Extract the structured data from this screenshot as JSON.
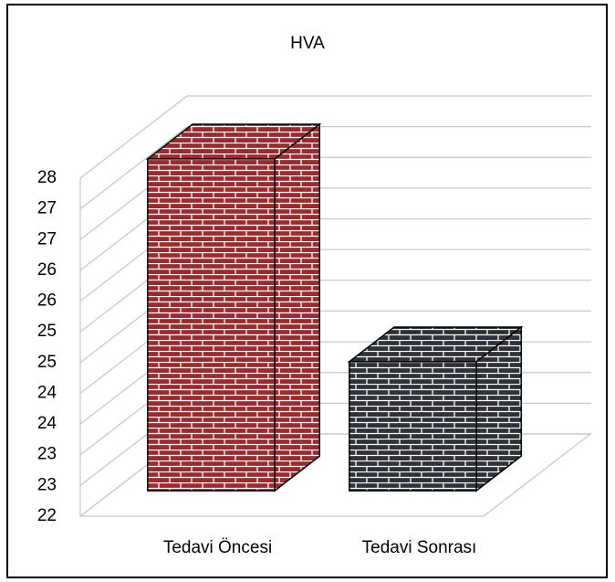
{
  "chart_data": {
    "type": "bar3d",
    "title": "HVA",
    "categories": [
      "Tedavi Öncesi",
      "Tedavi Sonrası"
    ],
    "series": [
      {
        "name": "HVA",
        "colors": [
          "#a8262a",
          "#2e333b"
        ],
        "values": [
          27.4,
          24.1
        ]
      }
    ],
    "ylim": [
      22,
      27.5
    ],
    "yticks": [
      22,
      {
        "value": 22.5,
        "label": "23"
      },
      23,
      {
        "value": 23.5,
        "label": "24"
      },
      24,
      {
        "value": 24.5,
        "label": "25"
      },
      25,
      {
        "value": 25.5,
        "label": "26"
      },
      26,
      {
        "value": 26.5,
        "label": "27"
      },
      27,
      {
        "value": 27.5,
        "label": "28"
      }
    ],
    "grid": true
  }
}
